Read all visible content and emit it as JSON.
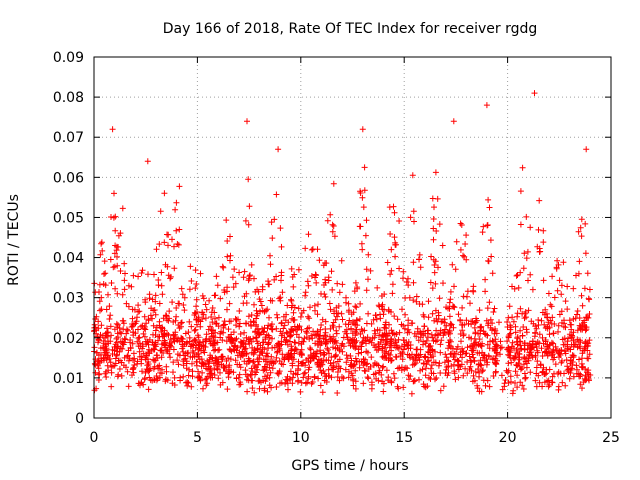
{
  "chart_data": {
    "type": "scatter",
    "title": "Day 166 of 2018, Rate Of TEC Index for receiver rgdg",
    "xlabel": "GPS time / hours",
    "ylabel": "ROTI / TECUs",
    "xlim": [
      0,
      25
    ],
    "ylim": [
      0,
      0.09
    ],
    "x_ticks": [
      0,
      5,
      10,
      15,
      20,
      25
    ],
    "x_tick_labels": [
      "0",
      "5",
      "10",
      "15",
      "20",
      "25"
    ],
    "y_ticks": [
      0,
      0.01,
      0.02,
      0.03,
      0.04,
      0.05,
      0.06,
      0.07,
      0.08,
      0.09
    ],
    "y_tick_labels": [
      "0",
      "0.01",
      "0.02",
      "0.03",
      "0.04",
      "0.05",
      "0.06",
      "0.07",
      "0.08",
      "0.09"
    ],
    "grid": true,
    "marker": "+",
    "series_color": "#ff0000",
    "data_range": {
      "x_min": 0,
      "x_max": 24,
      "y_min": 0.003,
      "y_max": 0.081
    },
    "notable_points": [
      {
        "x": 0.9,
        "y": 0.072
      },
      {
        "x": 2.6,
        "y": 0.064
      },
      {
        "x": 7.4,
        "y": 0.074
      },
      {
        "x": 8.9,
        "y": 0.067
      },
      {
        "x": 13.0,
        "y": 0.072
      },
      {
        "x": 17.4,
        "y": 0.074
      },
      {
        "x": 19.0,
        "y": 0.078
      },
      {
        "x": 21.3,
        "y": 0.081
      },
      {
        "x": 23.8,
        "y": 0.067
      }
    ]
  }
}
